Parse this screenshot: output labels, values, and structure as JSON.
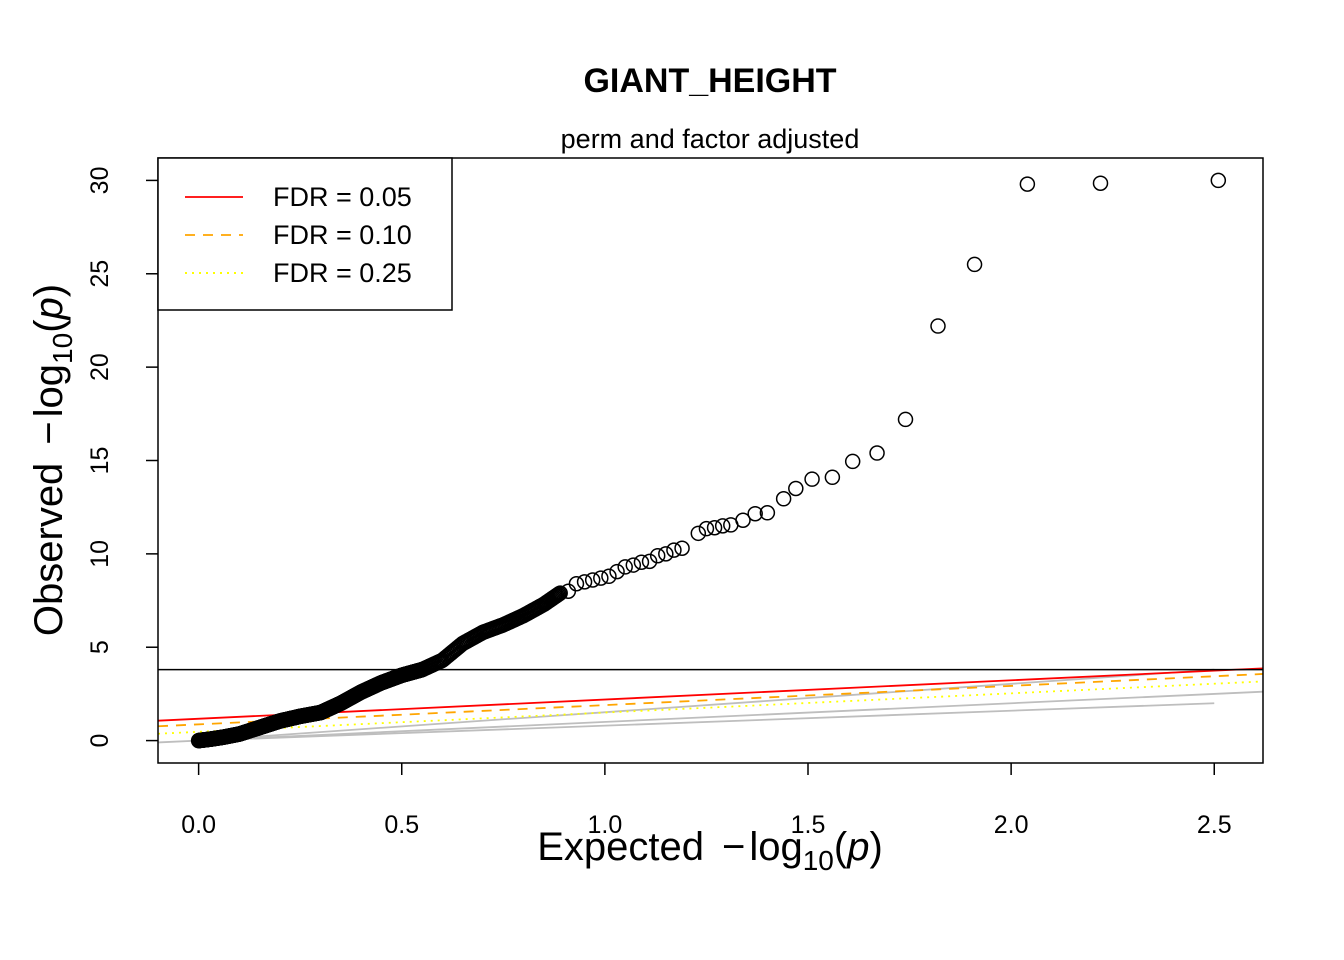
{
  "chart_data": {
    "type": "scatter",
    "title": "GIANT_HEIGHT",
    "subtitle": "perm and factor adjusted",
    "xlabel": {
      "main": "Expected",
      "minus": "−",
      "log": "log",
      "sub": "10",
      "open": "(",
      "var": "p",
      "close": ")"
    },
    "ylabel": {
      "main": "Observed",
      "minus": "−",
      "log": "log",
      "sub": "10",
      "open": "(",
      "var": "p",
      "close": ")"
    },
    "xlim": [
      -0.1,
      2.62
    ],
    "ylim": [
      -1.2,
      31.2
    ],
    "x_ticks": [
      "0.0",
      "0.5",
      "1.0",
      "1.5",
      "2.0",
      "2.5"
    ],
    "y_ticks": [
      "0",
      "5",
      "10",
      "15",
      "20",
      "25",
      "30"
    ],
    "threshold_line": {
      "y": 3.8,
      "color": "#000000"
    },
    "fdr_lines": [
      {
        "name": "FDR = 0.05",
        "color": "#ff0000",
        "style": "solid",
        "intercept": 1.17,
        "slope": 1.03
      },
      {
        "name": "FDR = 0.10",
        "color": "#ffa500",
        "style": "dashed",
        "intercept": 0.87,
        "slope": 1.03
      },
      {
        "name": "FDR = 0.25",
        "color": "#ffff00",
        "style": "dotted",
        "intercept": 0.47,
        "slope": 1.03
      }
    ],
    "gray_lines": [
      {
        "color": "#bebebe",
        "points": [
          [
            -0.1,
            -0.1
          ],
          [
            2.62,
            2.62
          ]
        ]
      },
      {
        "color": "#bebebe",
        "points": [
          [
            0.0,
            0.0
          ],
          [
            2.5,
            2.0
          ]
        ]
      },
      {
        "color": "#bebebe",
        "points": [
          [
            0.0,
            0.0
          ],
          [
            2.5,
            3.8
          ]
        ]
      }
    ],
    "legend": {
      "position": "top-left",
      "entries": [
        "FDR = 0.05",
        "FDR = 0.10",
        "FDR = 0.25"
      ]
    },
    "points_top": [
      {
        "x": 2.51,
        "y": 30.0
      },
      {
        "x": 2.22,
        "y": 29.85
      },
      {
        "x": 2.04,
        "y": 29.8
      },
      {
        "x": 1.91,
        "y": 25.5
      },
      {
        "x": 1.82,
        "y": 22.2
      },
      {
        "x": 1.74,
        "y": 17.2
      },
      {
        "x": 1.67,
        "y": 15.4
      },
      {
        "x": 1.61,
        "y": 14.95
      },
      {
        "x": 1.56,
        "y": 14.1
      },
      {
        "x": 1.51,
        "y": 14.0
      },
      {
        "x": 1.47,
        "y": 13.5
      },
      {
        "x": 1.44,
        "y": 12.95
      },
      {
        "x": 1.4,
        "y": 12.2
      },
      {
        "x": 1.37,
        "y": 12.15
      },
      {
        "x": 1.34,
        "y": 11.8
      },
      {
        "x": 1.31,
        "y": 11.55
      },
      {
        "x": 1.29,
        "y": 11.5
      },
      {
        "x": 1.27,
        "y": 11.4
      },
      {
        "x": 1.25,
        "y": 11.35
      },
      {
        "x": 1.23,
        "y": 11.1
      },
      {
        "x": 1.19,
        "y": 10.3
      },
      {
        "x": 1.17,
        "y": 10.2
      },
      {
        "x": 1.15,
        "y": 10.0
      },
      {
        "x": 1.13,
        "y": 9.9
      },
      {
        "x": 1.11,
        "y": 9.6
      },
      {
        "x": 1.09,
        "y": 9.55
      },
      {
        "x": 1.07,
        "y": 9.4
      },
      {
        "x": 1.05,
        "y": 9.3
      },
      {
        "x": 1.03,
        "y": 9.05
      },
      {
        "x": 1.01,
        "y": 8.8
      },
      {
        "x": 0.99,
        "y": 8.7
      },
      {
        "x": 0.97,
        "y": 8.6
      },
      {
        "x": 0.95,
        "y": 8.5
      },
      {
        "x": 0.93,
        "y": 8.4
      },
      {
        "x": 0.91,
        "y": 8.0
      },
      {
        "x": 0.89,
        "y": 7.9
      }
    ],
    "points_curve": [
      [
        0.0,
        0.0
      ],
      [
        0.03,
        0.08
      ],
      [
        0.06,
        0.18
      ],
      [
        0.1,
        0.35
      ],
      [
        0.15,
        0.7
      ],
      [
        0.2,
        1.05
      ],
      [
        0.25,
        1.3
      ],
      [
        0.3,
        1.5
      ],
      [
        0.35,
        2.0
      ],
      [
        0.4,
        2.6
      ],
      [
        0.45,
        3.1
      ],
      [
        0.5,
        3.5
      ],
      [
        0.55,
        3.8
      ],
      [
        0.6,
        4.3
      ],
      [
        0.65,
        5.2
      ],
      [
        0.7,
        5.8
      ],
      [
        0.75,
        6.2
      ],
      [
        0.8,
        6.7
      ],
      [
        0.85,
        7.3
      ],
      [
        0.89,
        7.9
      ]
    ]
  }
}
